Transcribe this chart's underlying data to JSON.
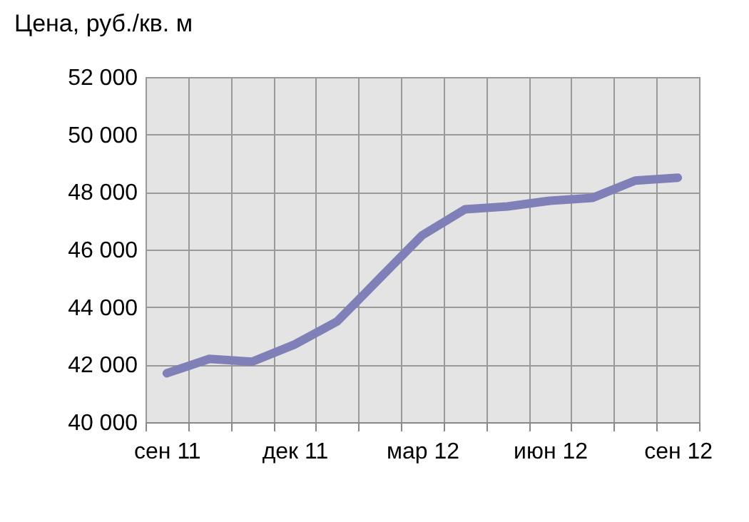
{
  "chart_data": {
    "type": "line",
    "title": "Цена, руб./кв. м",
    "categories": [
      "сен 11",
      null,
      null,
      "дек 11",
      null,
      null,
      "мар 12",
      null,
      null,
      "июн 12",
      null,
      null,
      "сен 12"
    ],
    "values": [
      41700,
      42200,
      42100,
      42700,
      43500,
      45000,
      46500,
      47400,
      47500,
      47700,
      47800,
      48400,
      48500
    ],
    "color": "#8080b8",
    "ylim": [
      40000,
      52000
    ],
    "yticks": [
      {
        "value": 40000,
        "label": "40 000"
      },
      {
        "value": 42000,
        "label": "42 000"
      },
      {
        "value": 44000,
        "label": "44 000"
      },
      {
        "value": 46000,
        "label": "46 000"
      },
      {
        "value": 48000,
        "label": "48 000"
      },
      {
        "value": 50000,
        "label": "50 000"
      },
      {
        "value": 52000,
        "label": "52 000"
      }
    ],
    "grid": true
  }
}
